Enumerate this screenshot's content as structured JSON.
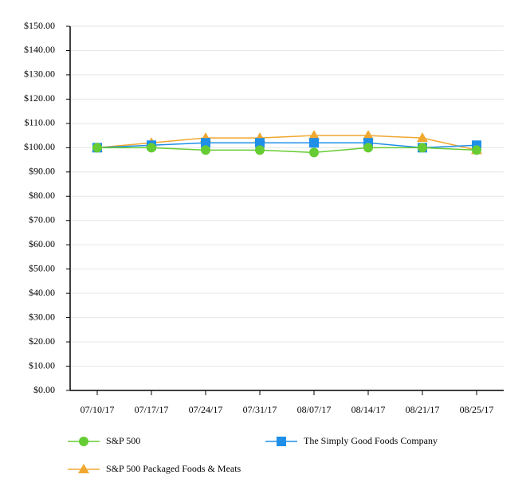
{
  "chart_data": {
    "type": "line",
    "categories": [
      "07/10/17",
      "07/17/17",
      "07/24/17",
      "07/31/17",
      "08/07/17",
      "08/14/17",
      "08/21/17",
      "08/25/17"
    ],
    "series": [
      {
        "name": "S&P 500",
        "color": "#66cc33",
        "marker": "circle",
        "values": [
          100,
          100,
          99,
          99,
          98,
          100,
          100,
          99
        ]
      },
      {
        "name": "The Simply Good Foods Company",
        "color": "#1f8fe8",
        "marker": "square",
        "values": [
          100,
          101,
          102,
          102,
          102,
          102,
          100,
          101
        ]
      },
      {
        "name": "S&P 500 Packaged Foods & Meats",
        "color": "#f0a830",
        "marker": "triangle",
        "values": [
          100,
          102,
          104,
          104,
          105,
          105,
          104,
          99
        ]
      }
    ],
    "ylim": [
      0,
      150
    ],
    "yticks": [
      {
        "value": 0,
        "label": "$0.00"
      },
      {
        "value": 10,
        "label": "$10.00"
      },
      {
        "value": 20,
        "label": "$20.00"
      },
      {
        "value": 30,
        "label": "$30.00"
      },
      {
        "value": 40,
        "label": "$40.00"
      },
      {
        "value": 50,
        "label": "$50.00"
      },
      {
        "value": 60,
        "label": "$60.00"
      },
      {
        "value": 70,
        "label": "$70.00"
      },
      {
        "value": 80,
        "label": "$80.00"
      },
      {
        "value": 90,
        "label": "$90.00"
      },
      {
        "value": 100,
        "label": "$100.00"
      },
      {
        "value": 110,
        "label": "$110.00"
      },
      {
        "value": 120,
        "label": "$120.00"
      },
      {
        "value": 130,
        "label": "$130.00"
      },
      {
        "value": 140,
        "label": "$140.00"
      },
      {
        "value": 150,
        "label": "$150.00"
      }
    ],
    "grid": true,
    "legend": "bottom"
  }
}
